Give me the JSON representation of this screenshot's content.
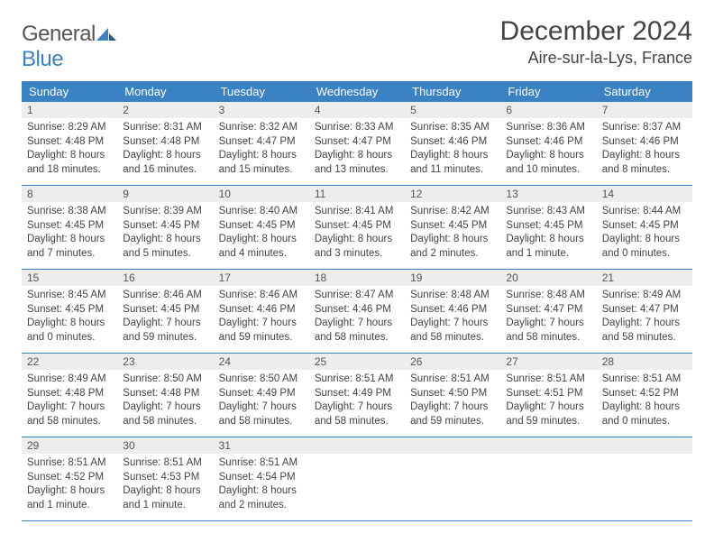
{
  "brand": {
    "part1": "General",
    "part2": "Blue"
  },
  "title": "December 2024",
  "location": "Aire-sur-la-Lys, France",
  "weekdays": [
    "Sunday",
    "Monday",
    "Tuesday",
    "Wednesday",
    "Thursday",
    "Friday",
    "Saturday"
  ],
  "colors": {
    "header_bg": "#3b82c4",
    "header_text": "#ffffff",
    "daynum_bg": "#ededed",
    "body_text": "#444444",
    "rule": "#3b82c4"
  },
  "weeks": [
    [
      {
        "n": "1",
        "sr": "8:29 AM",
        "ss": "4:48 PM",
        "dl": "8 hours and 18 minutes."
      },
      {
        "n": "2",
        "sr": "8:31 AM",
        "ss": "4:48 PM",
        "dl": "8 hours and 16 minutes."
      },
      {
        "n": "3",
        "sr": "8:32 AM",
        "ss": "4:47 PM",
        "dl": "8 hours and 15 minutes."
      },
      {
        "n": "4",
        "sr": "8:33 AM",
        "ss": "4:47 PM",
        "dl": "8 hours and 13 minutes."
      },
      {
        "n": "5",
        "sr": "8:35 AM",
        "ss": "4:46 PM",
        "dl": "8 hours and 11 minutes."
      },
      {
        "n": "6",
        "sr": "8:36 AM",
        "ss": "4:46 PM",
        "dl": "8 hours and 10 minutes."
      },
      {
        "n": "7",
        "sr": "8:37 AM",
        "ss": "4:46 PM",
        "dl": "8 hours and 8 minutes."
      }
    ],
    [
      {
        "n": "8",
        "sr": "8:38 AM",
        "ss": "4:45 PM",
        "dl": "8 hours and 7 minutes."
      },
      {
        "n": "9",
        "sr": "8:39 AM",
        "ss": "4:45 PM",
        "dl": "8 hours and 5 minutes."
      },
      {
        "n": "10",
        "sr": "8:40 AM",
        "ss": "4:45 PM",
        "dl": "8 hours and 4 minutes."
      },
      {
        "n": "11",
        "sr": "8:41 AM",
        "ss": "4:45 PM",
        "dl": "8 hours and 3 minutes."
      },
      {
        "n": "12",
        "sr": "8:42 AM",
        "ss": "4:45 PM",
        "dl": "8 hours and 2 minutes."
      },
      {
        "n": "13",
        "sr": "8:43 AM",
        "ss": "4:45 PM",
        "dl": "8 hours and 1 minute."
      },
      {
        "n": "14",
        "sr": "8:44 AM",
        "ss": "4:45 PM",
        "dl": "8 hours and 0 minutes."
      }
    ],
    [
      {
        "n": "15",
        "sr": "8:45 AM",
        "ss": "4:45 PM",
        "dl": "8 hours and 0 minutes."
      },
      {
        "n": "16",
        "sr": "8:46 AM",
        "ss": "4:45 PM",
        "dl": "7 hours and 59 minutes."
      },
      {
        "n": "17",
        "sr": "8:46 AM",
        "ss": "4:46 PM",
        "dl": "7 hours and 59 minutes."
      },
      {
        "n": "18",
        "sr": "8:47 AM",
        "ss": "4:46 PM",
        "dl": "7 hours and 58 minutes."
      },
      {
        "n": "19",
        "sr": "8:48 AM",
        "ss": "4:46 PM",
        "dl": "7 hours and 58 minutes."
      },
      {
        "n": "20",
        "sr": "8:48 AM",
        "ss": "4:47 PM",
        "dl": "7 hours and 58 minutes."
      },
      {
        "n": "21",
        "sr": "8:49 AM",
        "ss": "4:47 PM",
        "dl": "7 hours and 58 minutes."
      }
    ],
    [
      {
        "n": "22",
        "sr": "8:49 AM",
        "ss": "4:48 PM",
        "dl": "7 hours and 58 minutes."
      },
      {
        "n": "23",
        "sr": "8:50 AM",
        "ss": "4:48 PM",
        "dl": "7 hours and 58 minutes."
      },
      {
        "n": "24",
        "sr": "8:50 AM",
        "ss": "4:49 PM",
        "dl": "7 hours and 58 minutes."
      },
      {
        "n": "25",
        "sr": "8:51 AM",
        "ss": "4:49 PM",
        "dl": "7 hours and 58 minutes."
      },
      {
        "n": "26",
        "sr": "8:51 AM",
        "ss": "4:50 PM",
        "dl": "7 hours and 59 minutes."
      },
      {
        "n": "27",
        "sr": "8:51 AM",
        "ss": "4:51 PM",
        "dl": "7 hours and 59 minutes."
      },
      {
        "n": "28",
        "sr": "8:51 AM",
        "ss": "4:52 PM",
        "dl": "8 hours and 0 minutes."
      }
    ],
    [
      {
        "n": "29",
        "sr": "8:51 AM",
        "ss": "4:52 PM",
        "dl": "8 hours and 1 minute."
      },
      {
        "n": "30",
        "sr": "8:51 AM",
        "ss": "4:53 PM",
        "dl": "8 hours and 1 minute."
      },
      {
        "n": "31",
        "sr": "8:51 AM",
        "ss": "4:54 PM",
        "dl": "8 hours and 2 minutes."
      },
      null,
      null,
      null,
      null
    ]
  ]
}
